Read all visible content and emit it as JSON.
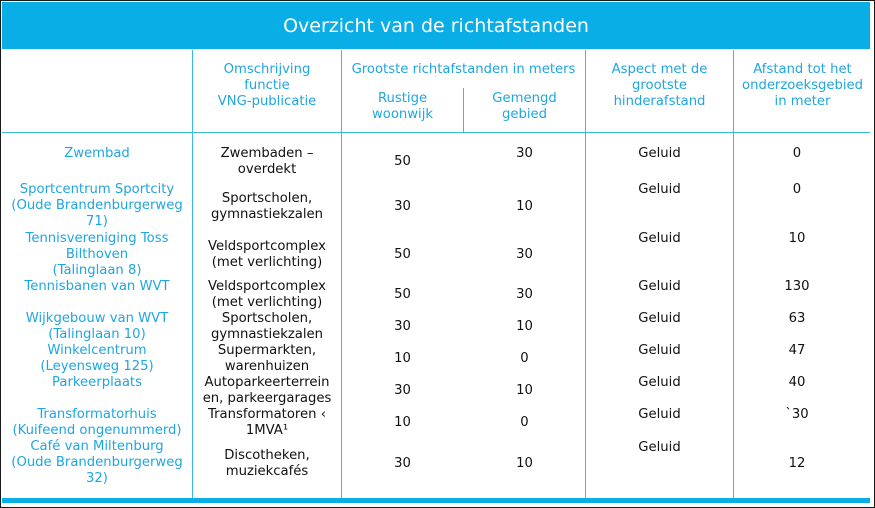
{
  "title": "Overzicht van de richtafstanden",
  "headers": {
    "description": [
      "Omschrijving",
      "functie",
      "VNG-publicatie"
    ],
    "largest": "Grootste richtafstanden in meters",
    "quiet": [
      "Rustige",
      "woonwijk"
    ],
    "mixed": [
      "Gemengd",
      "gebied"
    ],
    "aspect": [
      "Aspect met de",
      "grootste",
      "hinderafstand"
    ],
    "distance": [
      "Afstand tot het",
      "onderzoeksgebied",
      "in meter"
    ]
  },
  "locations": [
    [
      "Zwembad"
    ],
    [
      "Sportcentrum Sportcity",
      "(Oude Brandenburgerweg",
      "71)"
    ],
    [
      "Tennisvereniging Toss",
      "Bilthoven",
      "(Talinglaan 8)"
    ],
    [
      "Tennisbanen van WVT"
    ],
    [
      "Wijkgebouw van WVT",
      "(Talinglaan 10)"
    ],
    [
      "Winkelcentrum",
      "(Leyensweg 125)"
    ],
    [
      "Parkeerplaats"
    ],
    [
      "Transformatorhuis",
      "(Kuifeend ongenummerd)"
    ],
    [
      "Café van Miltenburg",
      "(Oude Brandenburgerweg",
      "32)"
    ]
  ],
  "rows": [
    {
      "description": [
        "Zwembaden –",
        "overdekt"
      ],
      "quiet": "50",
      "mixed": "30",
      "aspect": "Geluid",
      "distance": "0"
    },
    {
      "description": [
        "Sportscholen,",
        "gymnastiekzalen"
      ],
      "quiet": "30",
      "mixed": "10",
      "aspect": "Geluid",
      "distance": "0"
    },
    {
      "description": [
        "Veldsportcomplex",
        "(met verlichting)"
      ],
      "quiet": "50",
      "mixed": "30",
      "aspect": "Geluid",
      "distance": "10"
    },
    {
      "description": [
        "Veldsportcomplex",
        "(met verlichting)"
      ],
      "quiet": "50",
      "mixed": "30",
      "aspect": "Geluid",
      "distance": "130"
    },
    {
      "description": [
        "Sportscholen,",
        "gymnastiekzalen"
      ],
      "quiet": "30",
      "mixed": "10",
      "aspect": "Geluid",
      "distance": "63"
    },
    {
      "description": [
        "Supermarkten,",
        "warenhuizen"
      ],
      "quiet": "10",
      "mixed": "0",
      "aspect": "Geluid",
      "distance": "47"
    },
    {
      "description": [
        "Autoparkeerterrein",
        "en, parkeergarages"
      ],
      "quiet": "30",
      "mixed": "10",
      "aspect": "Geluid",
      "distance": "40"
    },
    {
      "description": [
        "Transformatoren ‹",
        "1MVA¹"
      ],
      "quiet": "10",
      "mixed": "0",
      "aspect": "Geluid",
      "distance": "`30"
    },
    {
      "description": [
        "Discotheken,",
        "muziekcafés"
      ],
      "quiet": "30",
      "mixed": "10",
      "aspect": "Geluid",
      "distance": "12"
    }
  ]
}
